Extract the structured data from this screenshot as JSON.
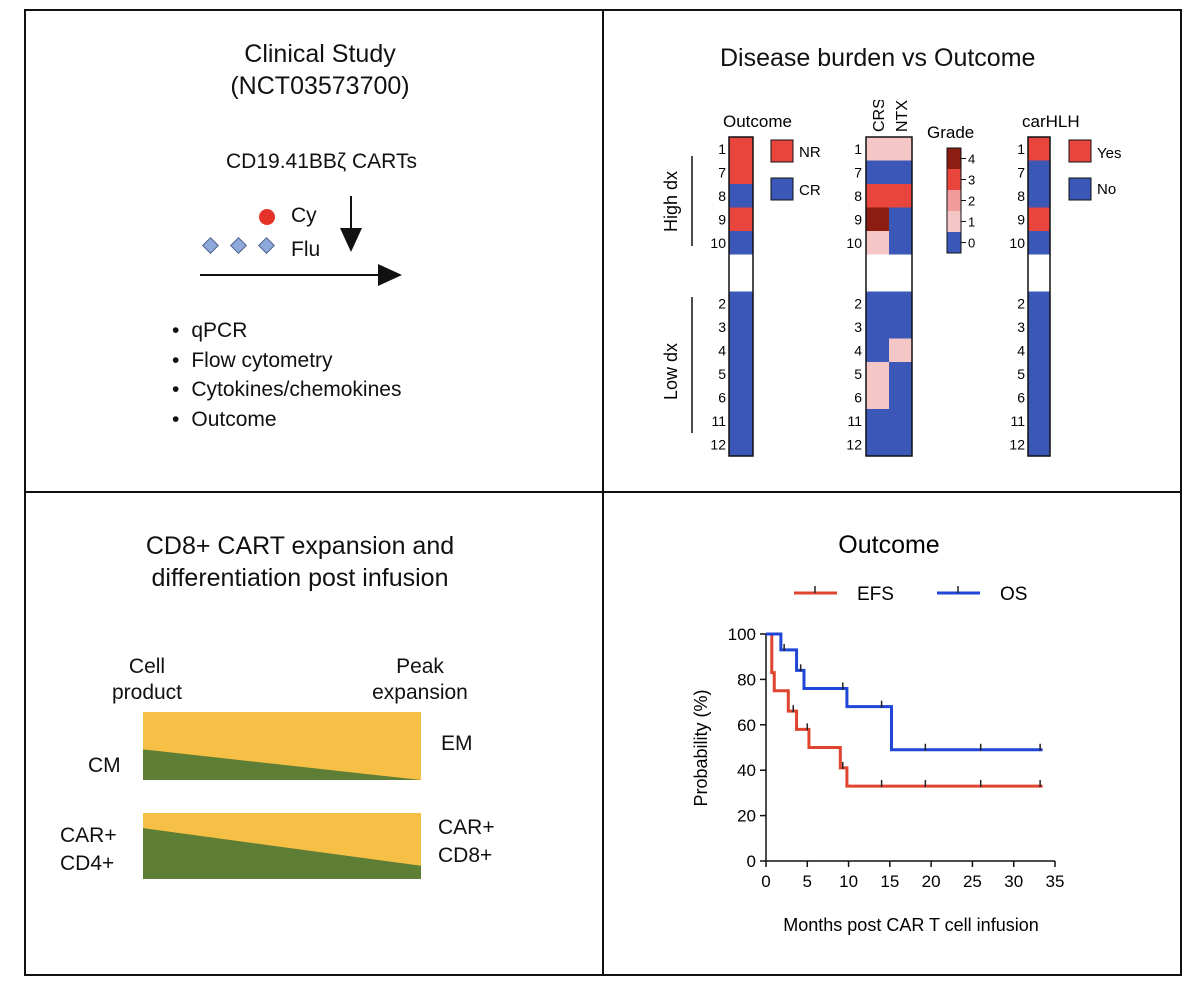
{
  "study": {
    "title_line1": "Clinical Study",
    "title_line2": "(NCT03573700)",
    "product": "CD19.41BBζ CARTs",
    "cy_label": "Cy",
    "flu_label": "Flu",
    "bullets": [
      "qPCR",
      "Flow cytometry",
      "Cytokines/chemokines",
      "Outcome"
    ]
  },
  "burden": {
    "title": "Disease burden vs Outcome",
    "outcome_header": "Outcome",
    "crs_header": "CRS",
    "ntx_header": "NTX",
    "grade_header": "Grade",
    "carhlh_header": "carHLH",
    "group_high": "High dx",
    "group_low": "Low dx",
    "legend_outcome": [
      "NR",
      "CR"
    ],
    "legend_carhlh": [
      "Yes",
      "No"
    ],
    "grade_ticks": [
      "4",
      "3",
      "2",
      "1",
      "0"
    ],
    "colors": {
      "red": "#e8453c",
      "blue": "#3b58b8",
      "g0": "#3b58b8",
      "g1": "#f5c6c6",
      "g2": "#f19b9b",
      "g3": "#e8453c",
      "g4": "#8b1d12"
    },
    "patients": [
      {
        "id": "1",
        "outcome": "NR",
        "crs": 1,
        "ntx": 1,
        "carhlh": "Yes"
      },
      {
        "id": "7",
        "outcome": "NR",
        "crs": 0,
        "ntx": 0,
        "carhlh": "No"
      },
      {
        "id": "8",
        "outcome": "CR",
        "crs": 3,
        "ntx": 3,
        "carhlh": "No"
      },
      {
        "id": "9",
        "outcome": "NR",
        "crs": 4,
        "ntx": 0,
        "carhlh": "Yes"
      },
      {
        "id": "10",
        "outcome": "CR",
        "crs": 1,
        "ntx": 0,
        "carhlh": "No"
      },
      {
        "id": "2",
        "outcome": "CR",
        "crs": 0,
        "ntx": 0,
        "carhlh": "No"
      },
      {
        "id": "3",
        "outcome": "CR",
        "crs": 0,
        "ntx": 0,
        "carhlh": "No"
      },
      {
        "id": "4",
        "outcome": "CR",
        "crs": 0,
        "ntx": 1,
        "carhlh": "No"
      },
      {
        "id": "5",
        "outcome": "CR",
        "crs": 1,
        "ntx": 0,
        "carhlh": "No"
      },
      {
        "id": "6",
        "outcome": "CR",
        "crs": 1,
        "ntx": 0,
        "carhlh": "No"
      },
      {
        "id": "11",
        "outcome": "CR",
        "crs": 0,
        "ntx": 0,
        "carhlh": "No"
      },
      {
        "id": "12",
        "outcome": "CR",
        "crs": 0,
        "ntx": 0,
        "carhlh": "No"
      }
    ]
  },
  "expansion": {
    "title_line1": "CD8+ CART expansion and",
    "title_line2": "differentiation post infusion",
    "left_header_line1": "Cell",
    "left_header_line2": "product",
    "right_header_line1": "Peak",
    "right_header_line2": "expansion",
    "cm_label": "CM",
    "em_label": "EM",
    "car4_line1": "CAR+",
    "car4_line2": "CD4+",
    "car8_line1": "CAR+",
    "car8_line2": "CD8+",
    "colors": {
      "yellow": "#f6bf45",
      "green": "#5e7d35"
    },
    "cm_fraction_start": 0.45,
    "cm_fraction_end": 0.0,
    "cd4_fraction_start": 0.77,
    "cd4_fraction_end": 0.2
  },
  "chart_data": {
    "type": "line",
    "title": "Outcome",
    "xlabel": "Months post CAR T cell infusion",
    "ylabel": "Probability (%)",
    "xlim": [
      0,
      35
    ],
    "ylim": [
      0,
      100
    ],
    "xticks": [
      0,
      5,
      10,
      15,
      20,
      25,
      30,
      35
    ],
    "yticks": [
      0,
      20,
      40,
      60,
      80,
      100
    ],
    "series": [
      {
        "name": "EFS",
        "color": "#e0442f",
        "steps": [
          [
            0,
            100
          ],
          [
            0.7,
            83
          ],
          [
            1.0,
            75
          ],
          [
            2.7,
            66
          ],
          [
            3.7,
            58
          ],
          [
            5.2,
            50
          ],
          [
            9.0,
            41
          ],
          [
            9.8,
            33
          ],
          [
            33.5,
            33
          ]
        ],
        "censors": [
          3.3,
          5.0,
          9.3,
          14.0,
          19.3,
          26.0,
          33.2
        ]
      },
      {
        "name": "OS",
        "color": "#1f46d6",
        "steps": [
          [
            0,
            100
          ],
          [
            1.8,
            93
          ],
          [
            3.7,
            84
          ],
          [
            4.6,
            76
          ],
          [
            9.8,
            68
          ],
          [
            15.2,
            49
          ],
          [
            33.5,
            49
          ]
        ],
        "censors": [
          2.2,
          4.2,
          9.3,
          14.0,
          19.3,
          26.0,
          33.2
        ]
      }
    ]
  }
}
